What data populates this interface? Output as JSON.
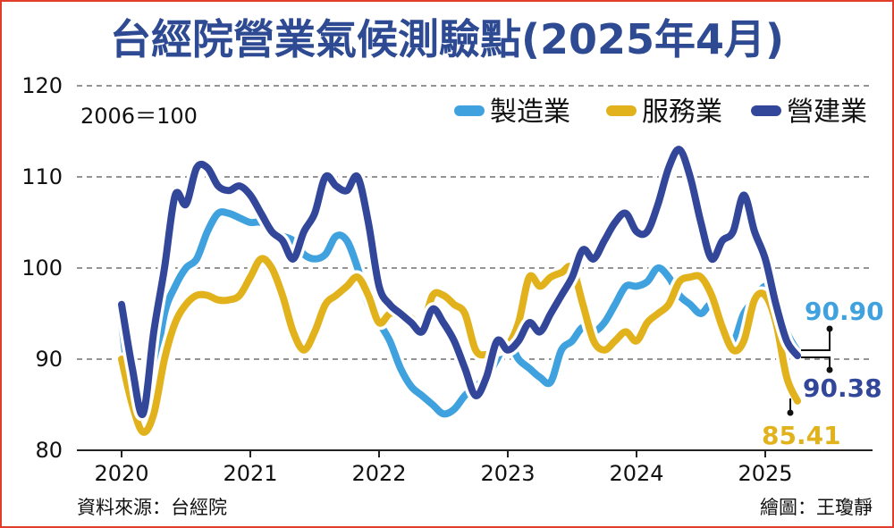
{
  "title": "台經院營業氣候測驗點(2025年4月)",
  "base_note": "2006＝100",
  "source": "資料來源：台經院",
  "credit": "繪圖：王瓊靜",
  "colors": {
    "manufacturing": "#3fa2de",
    "services": "#e2b21c",
    "construction": "#33479a",
    "title": "#2d4a93",
    "border": "#e23c2a"
  },
  "chart_data": {
    "type": "line",
    "x_ticks": [
      "2020",
      "2021",
      "2022",
      "2023",
      "2024",
      "2025"
    ],
    "y_ticks": [
      "80",
      "90",
      "100",
      "110",
      "120"
    ],
    "ylim": [
      80,
      120
    ],
    "xlim": [
      "2020-01",
      "2025-12"
    ],
    "grid": "horizontal dashed",
    "legend_position": "top-right",
    "series": [
      {
        "key": "manufacturing",
        "name": "製造業",
        "x": [
          "2020-01",
          "2020-02",
          "2020-03",
          "2020-04",
          "2020-05",
          "2020-06",
          "2020-07",
          "2020-08",
          "2020-09",
          "2020-10",
          "2020-11",
          "2020-12",
          "2021-01",
          "2021-02",
          "2021-03",
          "2021-04",
          "2021-05",
          "2021-06",
          "2021-07",
          "2021-08",
          "2021-09",
          "2021-10",
          "2021-11",
          "2021-12",
          "2022-01",
          "2022-02",
          "2022-03",
          "2022-04",
          "2022-05",
          "2022-06",
          "2022-07",
          "2022-08",
          "2022-09",
          "2022-10",
          "2022-11",
          "2022-12",
          "2023-01",
          "2023-02",
          "2023-03",
          "2023-04",
          "2023-05",
          "2023-06",
          "2023-07",
          "2023-08",
          "2023-09",
          "2023-10",
          "2023-11",
          "2023-12",
          "2024-01",
          "2024-02",
          "2024-03",
          "2024-04",
          "2024-05",
          "2024-06",
          "2024-07",
          "2024-08",
          "2024-09",
          "2024-10",
          "2024-11",
          "2024-12",
          "2025-01",
          "2025-02",
          "2025-03",
          "2025-04"
        ],
        "values": [
          94,
          85,
          82,
          88,
          95,
          98,
          100,
          101,
          104,
          106,
          106,
          105.5,
          105,
          105,
          104,
          103.5,
          103,
          101.5,
          101,
          101.5,
          103.5,
          103,
          100,
          96,
          94,
          92,
          89,
          87,
          86,
          85,
          84,
          84.5,
          86,
          87,
          88,
          90,
          92,
          90,
          89,
          88,
          87.5,
          91,
          92,
          93.5,
          93,
          94,
          96,
          98,
          98,
          98.5,
          100,
          99,
          97,
          96,
          95,
          96,
          94,
          92,
          95,
          96.5,
          98,
          97,
          93,
          90.9
        ]
      },
      {
        "key": "services",
        "name": "服務業",
        "x": [
          "2020-01",
          "2020-02",
          "2020-03",
          "2020-04",
          "2020-05",
          "2020-06",
          "2020-07",
          "2020-08",
          "2020-09",
          "2020-10",
          "2020-11",
          "2020-12",
          "2021-01",
          "2021-02",
          "2021-03",
          "2021-04",
          "2021-05",
          "2021-06",
          "2021-07",
          "2021-08",
          "2021-09",
          "2021-10",
          "2021-11",
          "2021-12",
          "2022-01",
          "2022-02",
          "2022-03",
          "2022-04",
          "2022-05",
          "2022-06",
          "2022-07",
          "2022-08",
          "2022-09",
          "2022-10",
          "2022-11",
          "2022-12",
          "2023-01",
          "2023-02",
          "2023-03",
          "2023-04",
          "2023-05",
          "2023-06",
          "2023-07",
          "2023-08",
          "2023-09",
          "2023-10",
          "2023-11",
          "2023-12",
          "2024-01",
          "2024-02",
          "2024-03",
          "2024-04",
          "2024-05",
          "2024-06",
          "2024-07",
          "2024-08",
          "2024-09",
          "2024-10",
          "2024-11",
          "2024-12",
          "2025-01",
          "2025-02",
          "2025-03",
          "2025-04"
        ],
        "values": [
          90,
          85,
          82,
          84,
          90,
          94,
          96,
          97,
          97,
          96.5,
          96.5,
          97,
          99,
          101,
          100,
          97,
          93,
          91,
          93,
          96,
          97,
          98,
          99,
          97,
          94,
          95,
          95,
          94.5,
          93.5,
          97,
          97,
          96,
          95,
          91,
          90.5,
          91,
          91.5,
          94,
          99,
          98,
          99,
          99.5,
          100,
          96,
          92,
          91,
          92,
          93,
          92,
          94,
          95,
          96,
          98.5,
          99,
          99,
          97,
          93.5,
          91,
          92,
          96.5,
          97,
          94,
          88,
          85.41
        ]
      },
      {
        "key": "construction",
        "name": "營建業",
        "x": [
          "2020-01",
          "2020-02",
          "2020-03",
          "2020-04",
          "2020-05",
          "2020-06",
          "2020-07",
          "2020-08",
          "2020-09",
          "2020-10",
          "2020-11",
          "2020-12",
          "2021-01",
          "2021-02",
          "2021-03",
          "2021-04",
          "2021-05",
          "2021-06",
          "2021-07",
          "2021-08",
          "2021-09",
          "2021-10",
          "2021-11",
          "2021-12",
          "2022-01",
          "2022-02",
          "2022-03",
          "2022-04",
          "2022-05",
          "2022-06",
          "2022-07",
          "2022-08",
          "2022-09",
          "2022-10",
          "2022-11",
          "2022-12",
          "2023-01",
          "2023-02",
          "2023-03",
          "2023-04",
          "2023-05",
          "2023-06",
          "2023-07",
          "2023-08",
          "2023-09",
          "2023-10",
          "2023-11",
          "2023-12",
          "2024-01",
          "2024-02",
          "2024-03",
          "2024-04",
          "2024-05",
          "2024-06",
          "2024-07",
          "2024-08",
          "2024-09",
          "2024-10",
          "2024-11",
          "2024-12",
          "2025-01",
          "2025-02",
          "2025-03",
          "2025-04"
        ],
        "values": [
          96,
          89,
          84,
          93,
          100,
          108,
          107,
          111,
          111,
          109,
          108.5,
          109,
          108,
          106,
          104,
          103,
          101,
          104,
          106,
          110,
          109,
          108.5,
          110,
          105,
          98,
          96,
          95,
          94,
          93,
          95.5,
          94,
          92,
          89,
          86,
          88,
          92,
          91,
          92,
          94,
          93,
          95,
          97,
          99,
          102,
          101,
          103,
          105,
          106,
          104,
          104,
          107,
          111,
          113,
          110,
          105,
          101,
          103,
          104,
          108,
          104,
          101,
          96,
          92,
          90.38
        ]
      }
    ],
    "annotations": [
      {
        "series": "manufacturing",
        "text": "90.90"
      },
      {
        "series": "construction",
        "text": "90.38"
      },
      {
        "series": "services",
        "text": "85.41"
      }
    ]
  }
}
